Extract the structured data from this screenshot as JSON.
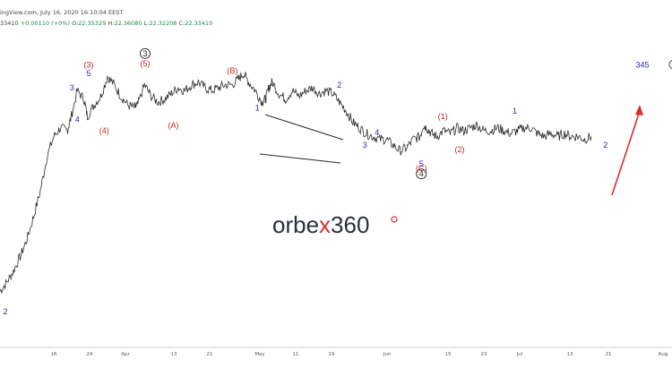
{
  "header": {
    "title_fragment": "ingView.com, July 16, 2020 16:10:04 EEST",
    "price_fragment": "33410",
    "change": "+0.00110 (+0%)",
    "open": "22.35329",
    "high": "22.36080",
    "low": "22.32208",
    "close": "22.33410",
    "open_key": "O:",
    "high_key": "H:",
    "low_key": "L:",
    "close_key": "C:"
  },
  "logo": {
    "part1": "orbe",
    "part2": "x",
    "part3": "360"
  },
  "colors": {
    "price_line": "#2a2a2a",
    "wave_blue": "#2b2bb5",
    "wave_red": "#c8261f",
    "triangle": "#2a2a2a",
    "arrow": "#d62d2d"
  },
  "chart_data": {
    "type": "line",
    "x_axis_labels": [
      "16",
      "24",
      "Apr",
      "13",
      "21",
      "May",
      "11",
      "19",
      "Jun",
      "15",
      "23",
      "Jul",
      "13",
      "21",
      "Aug"
    ],
    "series": [
      {
        "values": [
          [
            0.0,
            19.9
          ],
          [
            0.01,
            20.2
          ],
          [
            0.02,
            20.6
          ],
          [
            0.03,
            21.1
          ],
          [
            0.04,
            21.7
          ],
          [
            0.05,
            22.5
          ],
          [
            0.06,
            23.4
          ],
          [
            0.07,
            24.6
          ],
          [
            0.08,
            25.3
          ],
          [
            0.09,
            25.6
          ],
          [
            0.1,
            25.5
          ],
          [
            0.105,
            25.9
          ],
          [
            0.115,
            26.9
          ],
          [
            0.125,
            26.6
          ],
          [
            0.13,
            26.0
          ],
          [
            0.14,
            26.4
          ],
          [
            0.15,
            26.7
          ],
          [
            0.16,
            27.4
          ],
          [
            0.17,
            27.1
          ],
          [
            0.18,
            26.7
          ],
          [
            0.19,
            26.4
          ],
          [
            0.2,
            26.3
          ],
          [
            0.205,
            26.4
          ],
          [
            0.215,
            27.1
          ],
          [
            0.225,
            26.7
          ],
          [
            0.235,
            26.5
          ],
          [
            0.245,
            26.6
          ],
          [
            0.255,
            26.8
          ],
          [
            0.265,
            27.0
          ],
          [
            0.275,
            26.9
          ],
          [
            0.285,
            27.1
          ],
          [
            0.295,
            27.2
          ],
          [
            0.305,
            27.0
          ],
          [
            0.315,
            26.9
          ],
          [
            0.325,
            27.0
          ],
          [
            0.335,
            27.1
          ],
          [
            0.345,
            27.1
          ],
          [
            0.355,
            27.3
          ],
          [
            0.362,
            27.5
          ],
          [
            0.37,
            27.2
          ],
          [
            0.38,
            26.9
          ],
          [
            0.39,
            26.5
          ],
          [
            0.395,
            26.6
          ],
          [
            0.4,
            27.0
          ],
          [
            0.405,
            27.2
          ],
          [
            0.415,
            26.8
          ],
          [
            0.425,
            26.6
          ],
          [
            0.435,
            26.9
          ],
          [
            0.445,
            26.7
          ],
          [
            0.455,
            26.9
          ],
          [
            0.465,
            27.0
          ],
          [
            0.475,
            26.8
          ],
          [
            0.485,
            26.9
          ],
          [
            0.495,
            26.8
          ],
          [
            0.505,
            26.5
          ],
          [
            0.515,
            26.2
          ],
          [
            0.525,
            25.8
          ],
          [
            0.535,
            25.6
          ],
          [
            0.545,
            25.4
          ],
          [
            0.555,
            25.3
          ],
          [
            0.565,
            25.2
          ],
          [
            0.575,
            25.2
          ],
          [
            0.585,
            25.0
          ],
          [
            0.595,
            24.8
          ],
          [
            0.605,
            24.9
          ],
          [
            0.615,
            25.2
          ],
          [
            0.625,
            25.3
          ],
          [
            0.63,
            25.7
          ],
          [
            0.635,
            25.6
          ],
          [
            0.642,
            25.4
          ],
          [
            0.65,
            25.3
          ],
          [
            0.66,
            25.5
          ],
          [
            0.67,
            25.4
          ],
          [
            0.68,
            25.6
          ],
          [
            0.69,
            25.5
          ],
          [
            0.7,
            25.6
          ],
          [
            0.71,
            25.7
          ],
          [
            0.72,
            25.5
          ],
          [
            0.73,
            25.5
          ],
          [
            0.74,
            25.6
          ],
          [
            0.75,
            25.5
          ],
          [
            0.76,
            25.4
          ],
          [
            0.77,
            25.5
          ],
          [
            0.78,
            25.6
          ],
          [
            0.79,
            25.6
          ],
          [
            0.8,
            25.4
          ],
          [
            0.81,
            25.3
          ],
          [
            0.82,
            25.4
          ],
          [
            0.83,
            25.3
          ],
          [
            0.84,
            25.4
          ],
          [
            0.85,
            25.3
          ],
          [
            0.86,
            25.3
          ],
          [
            0.87,
            25.2
          ],
          [
            0.88,
            25.3
          ]
        ]
      }
    ],
    "wave_labels": [
      {
        "text": "2",
        "color": "blue",
        "pos": [
          0.008,
          19.1
        ]
      },
      {
        "text": "3",
        "color": "blue",
        "pos": [
          0.107,
          26.9
        ]
      },
      {
        "text": "4",
        "color": "blue",
        "pos": [
          0.115,
          25.8
        ]
      },
      {
        "text": "5",
        "color": "blue",
        "pos": [
          0.132,
          27.4
        ]
      },
      {
        "text": "(3)",
        "color": "red",
        "pos": [
          0.132,
          27.7
        ]
      },
      {
        "text": "(4)",
        "color": "red",
        "pos": [
          0.155,
          25.4
        ]
      },
      {
        "text": "(5)",
        "color": "red",
        "pos": [
          0.216,
          27.75
        ]
      },
      {
        "text": "3",
        "color": "black-circle",
        "pos": [
          0.216,
          28.1
        ]
      },
      {
        "text": "(A)",
        "color": "red",
        "pos": [
          0.258,
          25.6
        ]
      },
      {
        "text": "(B)",
        "color": "red",
        "pos": [
          0.346,
          27.5
        ]
      },
      {
        "text": "1",
        "color": "blue",
        "pos": [
          0.383,
          26.2
        ]
      },
      {
        "text": "2",
        "color": "blue",
        "pos": [
          0.505,
          27.0
        ]
      },
      {
        "text": "3",
        "color": "blue",
        "pos": [
          0.543,
          24.9
        ]
      },
      {
        "text": "4",
        "color": "blue",
        "pos": [
          0.561,
          25.35
        ]
      },
      {
        "text": "5",
        "color": "blue",
        "pos": [
          0.627,
          24.25
        ]
      },
      {
        "text": "(C)",
        "color": "red",
        "pos": [
          0.627,
          24.1
        ]
      },
      {
        "text": "4",
        "color": "black-circle",
        "pos": [
          0.627,
          23.9
        ]
      },
      {
        "text": "(1)",
        "color": "red",
        "pos": [
          0.659,
          25.9
        ]
      },
      {
        "text": "(2)",
        "color": "red",
        "pos": [
          0.684,
          24.75
        ]
      },
      {
        "text": "1",
        "color": "blue",
        "pos": [
          0.766,
          26.1
        ]
      },
      {
        "text": "2",
        "color": "blue",
        "pos": [
          0.901,
          24.9
        ]
      },
      {
        "text": "345",
        "color": "blue",
        "pos": [
          0.956,
          27.7
        ]
      }
    ]
  }
}
